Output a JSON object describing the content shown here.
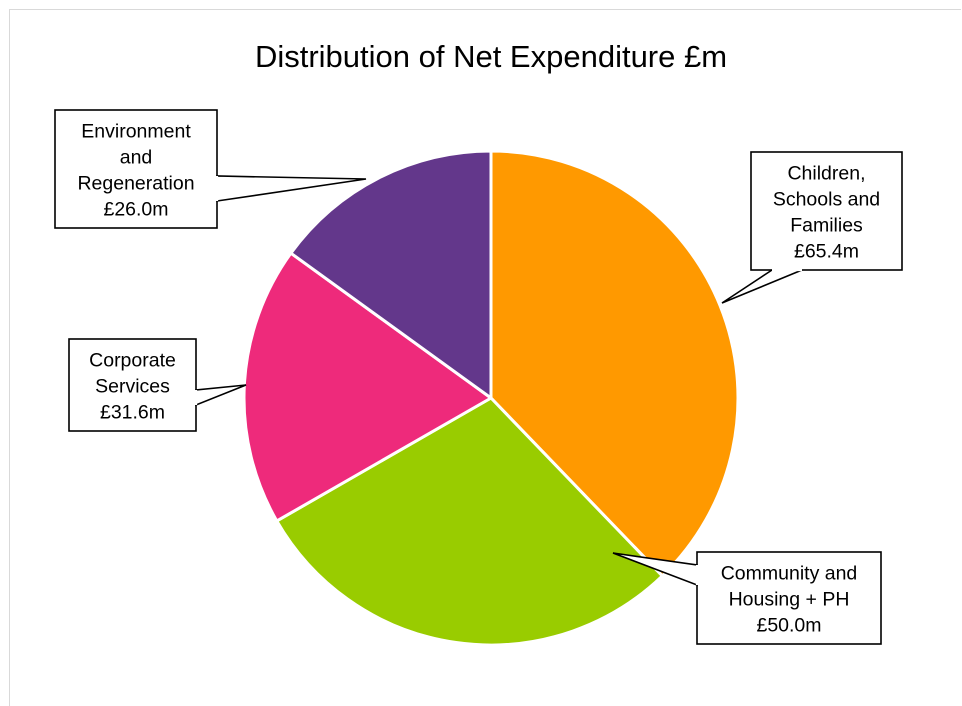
{
  "chart_data": {
    "type": "pie",
    "title": "Distribution of Net Expenditure £m",
    "unit": "£m",
    "start_angle_deg": 0,
    "direction": "clockwise",
    "slices": [
      {
        "label": "Children, Schools and Families",
        "value": 65.4,
        "value_label": "£65.4m",
        "callout_lines": [
          "Children,",
          "Schools and",
          "Families",
          "£65.4m"
        ],
        "color": "#ff9900"
      },
      {
        "label": "Community and Housing + PH",
        "value": 50.0,
        "value_label": "£50.0m",
        "callout_lines": [
          "Community and",
          "Housing + PH",
          "£50.0m"
        ],
        "color": "#99cc00"
      },
      {
        "label": "Corporate Services",
        "value": 31.6,
        "value_label": "£31.6m",
        "callout_lines": [
          "Corporate",
          "Services",
          "£31.6m"
        ],
        "color": "#ee2a7b"
      },
      {
        "label": "Environment and Regeneration",
        "value": 26.0,
        "value_label": "£26.0m",
        "callout_lines": [
          "Environment",
          "and",
          "Regeneration",
          "£26.0m"
        ],
        "color": "#63378b"
      }
    ],
    "legend": "none"
  }
}
